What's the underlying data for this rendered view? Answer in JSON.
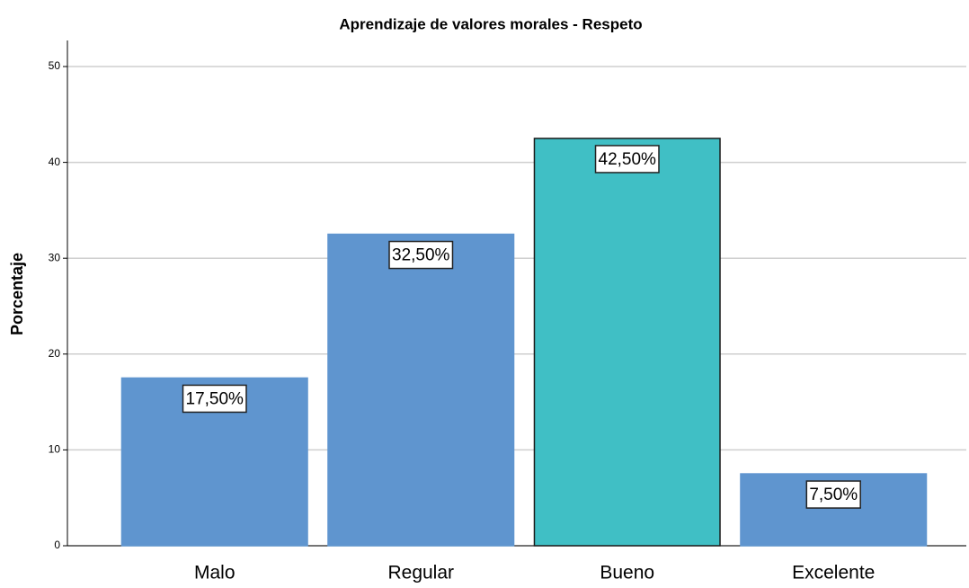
{
  "chart_data": {
    "type": "bar",
    "title": "Aprendizaje de valores morales - Respeto",
    "ylabel": "Porcentaje",
    "categories": [
      "Malo",
      "Regular",
      "Bueno",
      "Excelente"
    ],
    "values": [
      17.5,
      32.5,
      42.5,
      7.5
    ],
    "value_labels": [
      "17,50%",
      "32,50%",
      "42,50%",
      "7,50%"
    ],
    "colors": [
      "#5f95cf",
      "#5f95cf",
      "#40bfc5",
      "#5f95cf"
    ],
    "edgecolors": [
      "#5f95cf",
      "#5f95cf",
      "#1a1a1a",
      "#5f95cf"
    ],
    "ylim": [
      0,
      50
    ],
    "yticks": [
      0,
      10,
      20,
      30,
      40,
      50
    ],
    "grid": true
  }
}
